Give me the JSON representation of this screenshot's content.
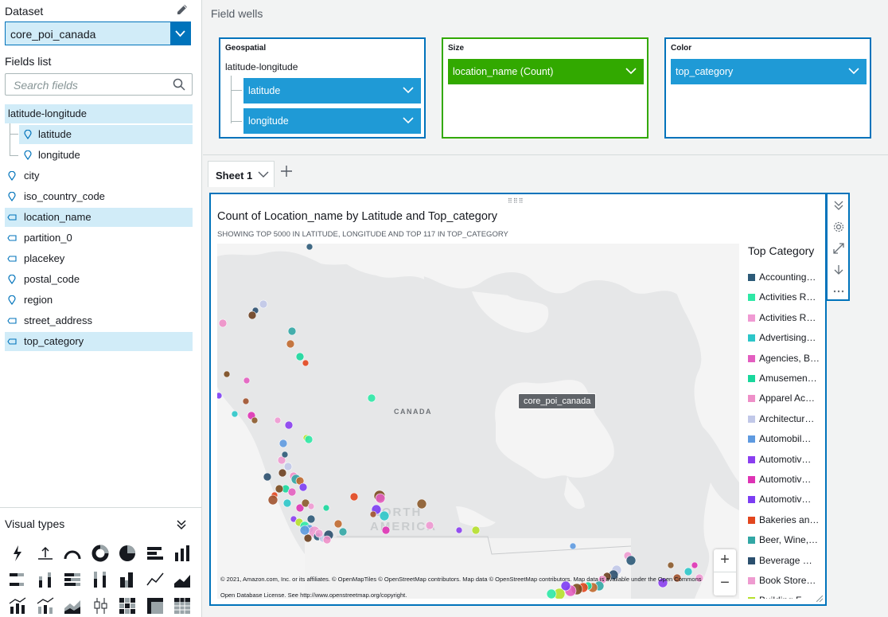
{
  "left_panel": {
    "dataset_label": "Dataset",
    "dataset_value": "core_poi_canada",
    "fields_label": "Fields list",
    "search_placeholder": "Search fields",
    "fields": [
      {
        "label": "latitude-longitude",
        "icon": "none",
        "selected": true
      },
      {
        "label": "latitude",
        "icon": "location-pin-icon",
        "selected": true
      },
      {
        "label": "longitude",
        "icon": "location-pin-icon",
        "selected": false
      },
      {
        "label": "city",
        "icon": "location-pin-icon",
        "selected": false
      },
      {
        "label": "iso_country_code",
        "icon": "location-pin-icon",
        "selected": false
      },
      {
        "label": "location_name",
        "icon": "text-field-icon",
        "selected": true
      },
      {
        "label": "partition_0",
        "icon": "text-field-icon",
        "selected": false
      },
      {
        "label": "placekey",
        "icon": "text-field-icon",
        "selected": false
      },
      {
        "label": "postal_code",
        "icon": "location-pin-icon",
        "selected": false
      },
      {
        "label": "region",
        "icon": "location-pin-icon",
        "selected": false
      },
      {
        "label": "street_address",
        "icon": "text-field-icon",
        "selected": false
      },
      {
        "label": "top_category",
        "icon": "text-field-icon",
        "selected": true
      }
    ],
    "visual_types_label": "Visual types",
    "visual_types": [
      "autograph-icon",
      "kpi-icon",
      "gauge-icon",
      "donut-icon",
      "pie-icon",
      "horizontal-bar-icon",
      "vertical-bar-icon",
      "stacked-horizontal-bar-icon",
      "stacked-vertical-bar-icon",
      "stacked-horizontal-100-icon",
      "stacked-vertical-100-icon",
      "clustered-combo-icon",
      "line-icon",
      "area-icon",
      "combo-line-icon",
      "combo-stacked-icon",
      "stacked-area-icon",
      "box-plot-icon",
      "heat-map-icon",
      "pivot-icon",
      "table-icon"
    ]
  },
  "field_wells": {
    "title": "Field wells",
    "geospatial": {
      "title": "Geospatial",
      "group": "latitude-longitude",
      "items": [
        "latitude",
        "longitude"
      ]
    },
    "size": {
      "title": "Size",
      "item": "location_name (Count)"
    },
    "color": {
      "title": "Color",
      "item": "top_category"
    }
  },
  "sheet_tab": {
    "label": "Sheet 1"
  },
  "visual": {
    "title": "Count of Location_name by Latitude and Top_category",
    "subtitle": "SHOWING TOP 5000 IN LATITUDE, LONGITUDE AND TOP 117 IN TOP_CATEGORY",
    "map_labels": {
      "canada": "CANADA",
      "north": "NORTH",
      "america": "AMERICA"
    },
    "tooltip": "core_poi_canada",
    "attribution": "© 2021, Amazon.com, Inc. or its affiliates. © OpenMapTiles © OpenStreetMap contributors. Map data © OpenStreetMap contributors. Map data is available under the Open Commons Open Database License. See http://www.openstreetmap.org/copyright.",
    "zoom_in": "+",
    "zoom_out": "−",
    "legend_title": "Top Category",
    "legend": [
      {
        "label": "Accounting…",
        "color": "#2c5a78"
      },
      {
        "label": "Activities R…",
        "color": "#2ee8a6"
      },
      {
        "label": "Activities R…",
        "color": "#f09ad3"
      },
      {
        "label": "Advertising…",
        "color": "#2cc6c9"
      },
      {
        "label": "Agencies, B…",
        "color": "#e35ec0"
      },
      {
        "label": "Amusemen…",
        "color": "#19d79c"
      },
      {
        "label": "Apparel Ac…",
        "color": "#ee8fc8"
      },
      {
        "label": "Architectur…",
        "color": "#c1c8e8"
      },
      {
        "label": "Automobil…",
        "color": "#5e9ae0"
      },
      {
        "label": "Automotiv…",
        "color": "#8a3ef0"
      },
      {
        "label": "Automotiv…",
        "color": "#de33b4"
      },
      {
        "label": "Automotiv…",
        "color": "#7c3df3"
      },
      {
        "label": "Bakeries an…",
        "color": "#e2461e"
      },
      {
        "label": "Beer, Wine,…",
        "color": "#32a7a5"
      },
      {
        "label": "Beverage …",
        "color": "#2b4f6e"
      },
      {
        "label": "Book Store…",
        "color": "#ee9bd0"
      },
      {
        "label": "Building F…",
        "color": "#b6e02c"
      }
    ]
  }
}
